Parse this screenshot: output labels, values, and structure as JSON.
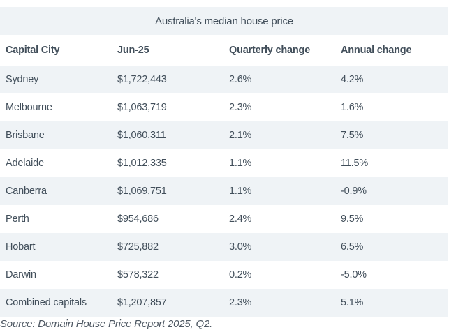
{
  "title": "Australia's median house price",
  "table": {
    "columns": [
      "Capital City",
      "Jun-25",
      "Quarterly change",
      "Annual change"
    ],
    "rows": [
      {
        "city": "Sydney",
        "price": "$1,722,443",
        "quarterly": "2.6%",
        "annual": "4.2%"
      },
      {
        "city": "Melbourne",
        "price": "$1,063,719",
        "quarterly": "2.3%",
        "annual": "1.6%"
      },
      {
        "city": "Brisbane",
        "price": "$1,060,311",
        "quarterly": "2.1%",
        "annual": "7.5%"
      },
      {
        "city": "Adelaide",
        "price": "$1,012,335",
        "quarterly": "1.1%",
        "annual": "11.5%"
      },
      {
        "city": "Canberra",
        "price": "$1,069,751",
        "quarterly": "1.1%",
        "annual": "-0.9%"
      },
      {
        "city": "Perth",
        "price": "$954,686",
        "quarterly": "2.4%",
        "annual": "9.5%"
      },
      {
        "city": "Hobart",
        "price": "$725,882",
        "quarterly": "3.0%",
        "annual": "6.5%"
      },
      {
        "city": "Darwin",
        "price": "$578,322",
        "quarterly": "0.2%",
        "annual": "-5.0%"
      },
      {
        "city": "Combined capitals",
        "price": "$1,207,857",
        "quarterly": "2.3%",
        "annual": "5.1%"
      }
    ]
  },
  "source": "Source: Domain House Price Report 2025, Q2.",
  "colors": {
    "stripe_background": "#eff3f6",
    "text": "#414e5a",
    "page_background": "#ffffff"
  },
  "chart_data": {
    "type": "table",
    "title": "Australia's median house price",
    "columns": [
      "Capital City",
      "Jun-25",
      "Quarterly change",
      "Annual change"
    ],
    "categories": [
      "Sydney",
      "Melbourne",
      "Brisbane",
      "Adelaide",
      "Canberra",
      "Perth",
      "Hobart",
      "Darwin",
      "Combined capitals"
    ],
    "series": [
      {
        "name": "Median house price Jun-25 (AUD)",
        "values": [
          1722443,
          1063719,
          1060311,
          1012335,
          1069751,
          954686,
          725882,
          578322,
          1207857
        ]
      },
      {
        "name": "Quarterly change (%)",
        "values": [
          2.6,
          2.3,
          2.1,
          1.1,
          1.1,
          2.4,
          3.0,
          0.2,
          2.3
        ]
      },
      {
        "name": "Annual change (%)",
        "values": [
          4.2,
          1.6,
          7.5,
          11.5,
          -0.9,
          9.5,
          6.5,
          -5.0,
          5.1
        ]
      }
    ],
    "annotations": [
      "Source: Domain House Price Report 2025, Q2."
    ]
  }
}
